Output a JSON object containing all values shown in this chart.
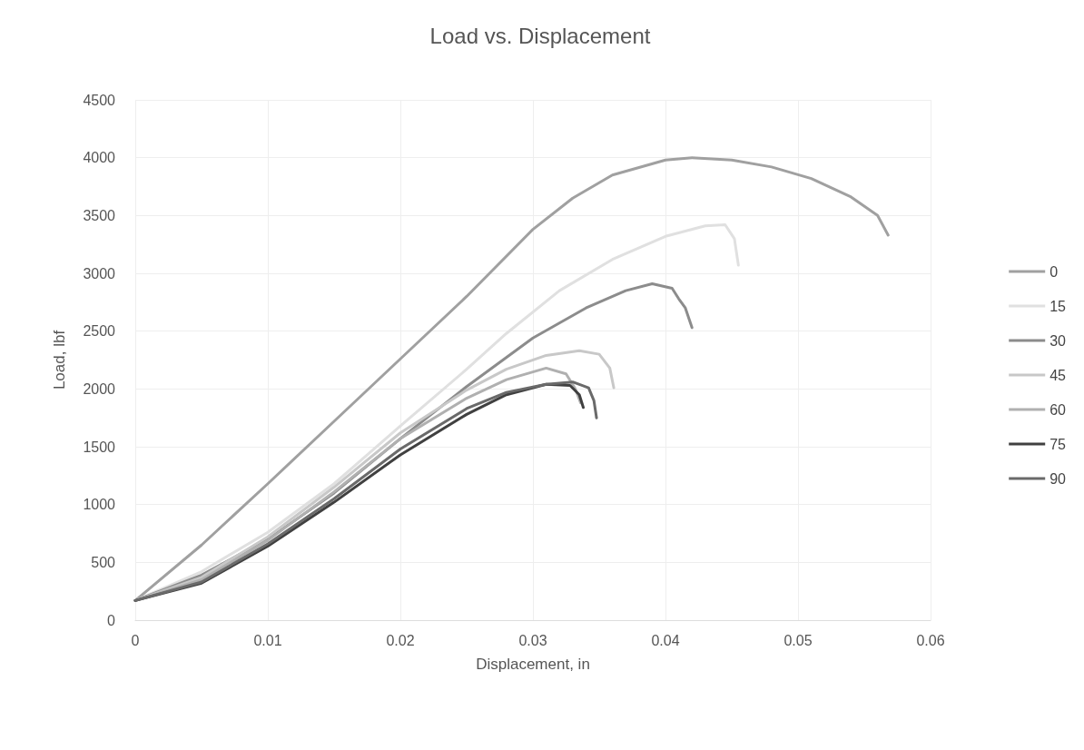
{
  "chart_data": {
    "type": "line",
    "title": "Load vs. Displacement",
    "xlabel": "Displacement, in",
    "ylabel": "Load, lbf",
    "xlim": [
      0,
      0.06
    ],
    "xticks": [
      0,
      0.01,
      0.02,
      0.03,
      0.04,
      0.05,
      0.06
    ],
    "ylim": [
      0,
      4500
    ],
    "yticks": [
      0,
      500,
      1000,
      1500,
      2000,
      2500,
      3000,
      3500,
      4000,
      4500
    ],
    "grid": true,
    "legend": "right",
    "marker": "none",
    "line_style": "solid",
    "series": [
      {
        "name": "0",
        "color": "#a0a0a0",
        "x": [
          0,
          0.005,
          0.01,
          0.015,
          0.02,
          0.025,
          0.03,
          0.033,
          0.036,
          0.04,
          0.042,
          0.045,
          0.048,
          0.051,
          0.054,
          0.056,
          0.0568
        ],
        "values": [
          170,
          650,
          1180,
          1720,
          2260,
          2800,
          3380,
          3650,
          3850,
          3980,
          4000,
          3980,
          3920,
          3820,
          3660,
          3500,
          3330
        ]
      },
      {
        "name": "15",
        "color": "#e0e0e0",
        "x": [
          0,
          0.005,
          0.01,
          0.015,
          0.02,
          0.025,
          0.028,
          0.032,
          0.036,
          0.04,
          0.043,
          0.0445,
          0.0452,
          0.0455
        ],
        "values": [
          170,
          420,
          760,
          1180,
          1680,
          2170,
          2480,
          2850,
          3120,
          3320,
          3410,
          3420,
          3300,
          3070
        ]
      },
      {
        "name": "30",
        "color": "#8c8c8c",
        "x": [
          0,
          0.005,
          0.01,
          0.015,
          0.02,
          0.025,
          0.03,
          0.034,
          0.037,
          0.039,
          0.0405,
          0.041,
          0.0415,
          0.042
        ],
        "values": [
          170,
          390,
          700,
          1100,
          1570,
          2020,
          2440,
          2700,
          2850,
          2910,
          2870,
          2780,
          2700,
          2530
        ]
      },
      {
        "name": "45",
        "color": "#c8c8c8",
        "x": [
          0,
          0.005,
          0.01,
          0.015,
          0.02,
          0.025,
          0.028,
          0.031,
          0.0335,
          0.035,
          0.0358,
          0.0361
        ],
        "values": [
          170,
          370,
          720,
          1150,
          1620,
          1990,
          2170,
          2290,
          2330,
          2300,
          2180,
          2010
        ]
      },
      {
        "name": "60",
        "color": "#b0b0b0",
        "x": [
          0,
          0.005,
          0.01,
          0.015,
          0.02,
          0.025,
          0.028,
          0.031,
          0.0325,
          0.0332,
          0.0336
        ],
        "values": [
          170,
          350,
          690,
          1110,
          1570,
          1920,
          2080,
          2180,
          2130,
          2000,
          1880
        ]
      },
      {
        "name": "75",
        "color": "#404040",
        "x": [
          0,
          0.005,
          0.01,
          0.015,
          0.02,
          0.025,
          0.028,
          0.031,
          0.0328,
          0.0335,
          0.0338
        ],
        "values": [
          170,
          320,
          640,
          1020,
          1430,
          1780,
          1950,
          2040,
          2030,
          1950,
          1840
        ]
      },
      {
        "name": "90",
        "color": "#6a6a6a",
        "x": [
          0,
          0.005,
          0.01,
          0.015,
          0.02,
          0.025,
          0.028,
          0.031,
          0.033,
          0.0342,
          0.0346,
          0.0348
        ],
        "values": [
          170,
          330,
          660,
          1050,
          1480,
          1830,
          1970,
          2040,
          2060,
          2010,
          1900,
          1750
        ]
      }
    ]
  }
}
